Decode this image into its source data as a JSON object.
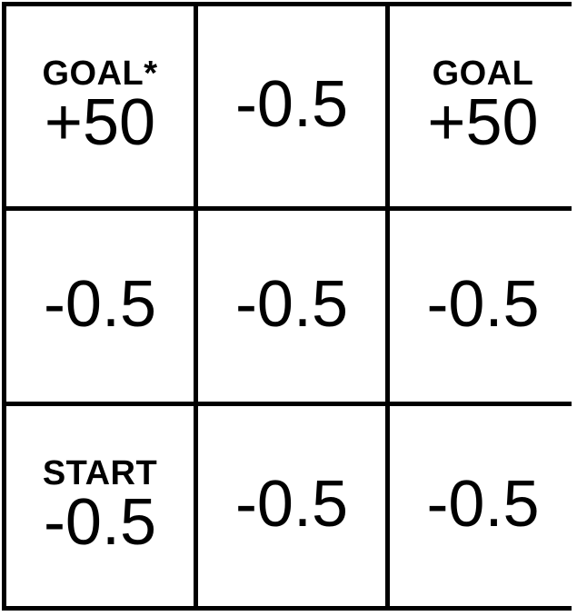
{
  "grid": {
    "rows": [
      [
        {
          "label": "GOAL*",
          "value": "+50"
        },
        {
          "label": "",
          "value": "-0.5"
        },
        {
          "label": "GOAL",
          "value": "+50"
        }
      ],
      [
        {
          "label": "",
          "value": "-0.5"
        },
        {
          "label": "",
          "value": "-0.5"
        },
        {
          "label": "",
          "value": "-0.5"
        }
      ],
      [
        {
          "label": "START",
          "value": "-0.5"
        },
        {
          "label": "",
          "value": "-0.5"
        },
        {
          "label": "",
          "value": "-0.5"
        }
      ]
    ]
  }
}
